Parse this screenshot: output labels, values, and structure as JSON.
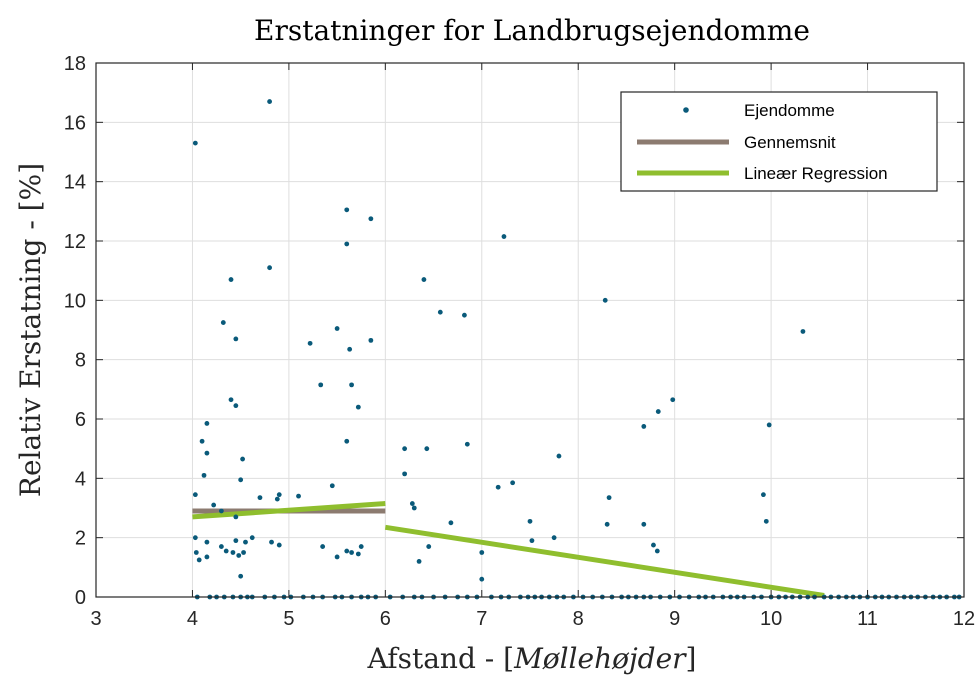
{
  "chart_data": {
    "type": "scatter",
    "title": "Erstatninger for Landbrugsejendomme",
    "xlabel_prefix": "Afstand - [",
    "xlabel_italic": "Møllehøjder",
    "xlabel_suffix": "]",
    "ylabel": "Relativ Erstatning - [%]",
    "xlim": [
      3,
      12
    ],
    "ylim": [
      0,
      18
    ],
    "xticks": [
      3,
      4,
      5,
      6,
      7,
      8,
      9,
      10,
      11,
      12
    ],
    "yticks": [
      0,
      2,
      4,
      6,
      8,
      10,
      12,
      14,
      16,
      18
    ],
    "grid": true,
    "legend_position": "top-right",
    "legend": [
      "Ejendomme",
      "Gennemsnit",
      "Lineær Regression"
    ],
    "colors": {
      "points": "#0a5a7a",
      "mean": "#8c7b70",
      "regression": "#8fbe2e",
      "grid": "#dedede",
      "axis": "#262626"
    },
    "series": [
      {
        "name": "Ejendomme",
        "type": "scatter",
        "points": [
          [
            4.03,
            15.3
          ],
          [
            4.8,
            16.7
          ],
          [
            4.8,
            11.1
          ],
          [
            5.6,
            13.05
          ],
          [
            5.85,
            12.75
          ],
          [
            5.6,
            11.9
          ],
          [
            4.4,
            10.7
          ],
          [
            4.32,
            9.25
          ],
          [
            4.45,
            8.7
          ],
          [
            5.5,
            9.05
          ],
          [
            5.22,
            8.55
          ],
          [
            5.85,
            8.65
          ],
          [
            5.63,
            8.35
          ],
          [
            5.65,
            7.15
          ],
          [
            5.33,
            7.15
          ],
          [
            4.4,
            6.65
          ],
          [
            4.45,
            6.45
          ],
          [
            5.72,
            6.4
          ],
          [
            4.15,
            5.85
          ],
          [
            4.1,
            5.25
          ],
          [
            4.15,
            4.85
          ],
          [
            4.52,
            4.65
          ],
          [
            5.6,
            5.25
          ],
          [
            4.12,
            4.1
          ],
          [
            4.5,
            3.95
          ],
          [
            4.03,
            3.45
          ],
          [
            4.22,
            3.1
          ],
          [
            4.7,
            3.35
          ],
          [
            4.88,
            3.3
          ],
          [
            4.9,
            3.45
          ],
          [
            5.1,
            3.4
          ],
          [
            5.45,
            3.75
          ],
          [
            4.3,
            2.9
          ],
          [
            4.45,
            2.7
          ],
          [
            4.03,
            2.0
          ],
          [
            4.15,
            1.85
          ],
          [
            4.45,
            1.9
          ],
          [
            4.55,
            1.85
          ],
          [
            4.62,
            2.0
          ],
          [
            4.82,
            1.85
          ],
          [
            4.9,
            1.75
          ],
          [
            4.04,
            1.5
          ],
          [
            4.07,
            1.25
          ],
          [
            4.15,
            1.35
          ],
          [
            4.42,
            1.5
          ],
          [
            4.48,
            1.4
          ],
          [
            4.5,
            0.7
          ],
          [
            4.3,
            1.7
          ],
          [
            4.35,
            1.55
          ],
          [
            4.53,
            1.5
          ],
          [
            5.35,
            1.7
          ],
          [
            5.5,
            1.35
          ],
          [
            5.6,
            1.55
          ],
          [
            5.65,
            1.5
          ],
          [
            5.72,
            1.45
          ],
          [
            5.75,
            1.7
          ],
          [
            6.2,
            5.0
          ],
          [
            6.2,
            4.15
          ],
          [
            6.28,
            3.15
          ],
          [
            6.3,
            3.0
          ],
          [
            6.35,
            1.2
          ],
          [
            6.4,
            10.7
          ],
          [
            6.43,
            5.0
          ],
          [
            6.57,
            9.6
          ],
          [
            6.82,
            9.5
          ],
          [
            6.85,
            5.15
          ],
          [
            6.45,
            1.7
          ],
          [
            6.68,
            2.5
          ],
          [
            7.0,
            1.5
          ],
          [
            7.0,
            0.6
          ],
          [
            7.17,
            3.7
          ],
          [
            7.23,
            12.15
          ],
          [
            7.32,
            3.85
          ],
          [
            7.5,
            2.55
          ],
          [
            7.52,
            1.9
          ],
          [
            7.8,
            4.75
          ],
          [
            7.75,
            2.0
          ],
          [
            8.28,
            10.0
          ],
          [
            8.32,
            3.35
          ],
          [
            8.3,
            2.45
          ],
          [
            8.68,
            5.75
          ],
          [
            8.83,
            6.25
          ],
          [
            8.98,
            6.65
          ],
          [
            8.68,
            2.45
          ],
          [
            8.78,
            1.75
          ],
          [
            8.82,
            1.55
          ],
          [
            9.92,
            3.45
          ],
          [
            9.95,
            2.55
          ],
          [
            9.98,
            5.8
          ],
          [
            10.33,
            8.95
          ],
          [
            4.05,
            0
          ],
          [
            4.18,
            0
          ],
          [
            4.25,
            0
          ],
          [
            4.33,
            0
          ],
          [
            4.42,
            0
          ],
          [
            4.5,
            0
          ],
          [
            4.57,
            0
          ],
          [
            4.62,
            0
          ],
          [
            4.75,
            0
          ],
          [
            4.85,
            0
          ],
          [
            4.95,
            0
          ],
          [
            5.02,
            0
          ],
          [
            5.15,
            0
          ],
          [
            5.25,
            0
          ],
          [
            5.35,
            0
          ],
          [
            5.48,
            0
          ],
          [
            5.55,
            0
          ],
          [
            5.65,
            0
          ],
          [
            5.75,
            0
          ],
          [
            5.82,
            0
          ],
          [
            5.9,
            0
          ],
          [
            6.05,
            0
          ],
          [
            6.18,
            0
          ],
          [
            6.3,
            0
          ],
          [
            6.38,
            0
          ],
          [
            6.5,
            0
          ],
          [
            6.62,
            0
          ],
          [
            6.75,
            0
          ],
          [
            6.85,
            0
          ],
          [
            6.95,
            0
          ],
          [
            7.1,
            0
          ],
          [
            7.2,
            0
          ],
          [
            7.28,
            0
          ],
          [
            7.4,
            0
          ],
          [
            7.48,
            0
          ],
          [
            7.55,
            0
          ],
          [
            7.62,
            0
          ],
          [
            7.7,
            0
          ],
          [
            7.78,
            0
          ],
          [
            7.85,
            0
          ],
          [
            7.95,
            0
          ],
          [
            8.05,
            0
          ],
          [
            8.15,
            0
          ],
          [
            8.25,
            0
          ],
          [
            8.35,
            0
          ],
          [
            8.45,
            0
          ],
          [
            8.52,
            0
          ],
          [
            8.6,
            0
          ],
          [
            8.68,
            0
          ],
          [
            8.75,
            0
          ],
          [
            8.85,
            0
          ],
          [
            8.95,
            0
          ],
          [
            9.05,
            0
          ],
          [
            9.15,
            0
          ],
          [
            9.25,
            0
          ],
          [
            9.32,
            0
          ],
          [
            9.4,
            0
          ],
          [
            9.5,
            0
          ],
          [
            9.58,
            0
          ],
          [
            9.65,
            0
          ],
          [
            9.72,
            0
          ],
          [
            9.82,
            0
          ],
          [
            9.9,
            0
          ],
          [
            10.0,
            0
          ],
          [
            10.08,
            0
          ],
          [
            10.15,
            0
          ],
          [
            10.22,
            0
          ],
          [
            10.3,
            0
          ],
          [
            10.38,
            0
          ],
          [
            10.45,
            0
          ],
          [
            10.55,
            0
          ],
          [
            10.62,
            0
          ],
          [
            10.7,
            0
          ],
          [
            10.78,
            0
          ],
          [
            10.85,
            0
          ],
          [
            10.92,
            0
          ],
          [
            11.0,
            0
          ],
          [
            11.08,
            0
          ],
          [
            11.15,
            0
          ],
          [
            11.22,
            0
          ],
          [
            11.3,
            0
          ],
          [
            11.38,
            0
          ],
          [
            11.45,
            0
          ],
          [
            11.52,
            0
          ],
          [
            11.6,
            0
          ],
          [
            11.68,
            0
          ],
          [
            11.75,
            0
          ],
          [
            11.82,
            0
          ],
          [
            11.9,
            0
          ],
          [
            11.95,
            0
          ]
        ]
      },
      {
        "name": "Gennemsnit",
        "type": "line",
        "x": [
          4,
          6
        ],
        "y": [
          2.9,
          2.9
        ]
      },
      {
        "name": "Lineær Regression",
        "type": "line",
        "segments": [
          {
            "x": [
              4,
              6
            ],
            "y": [
              2.7,
              3.15
            ]
          },
          {
            "x": [
              6,
              10.55
            ],
            "y": [
              2.35,
              0.05
            ]
          }
        ]
      }
    ]
  }
}
